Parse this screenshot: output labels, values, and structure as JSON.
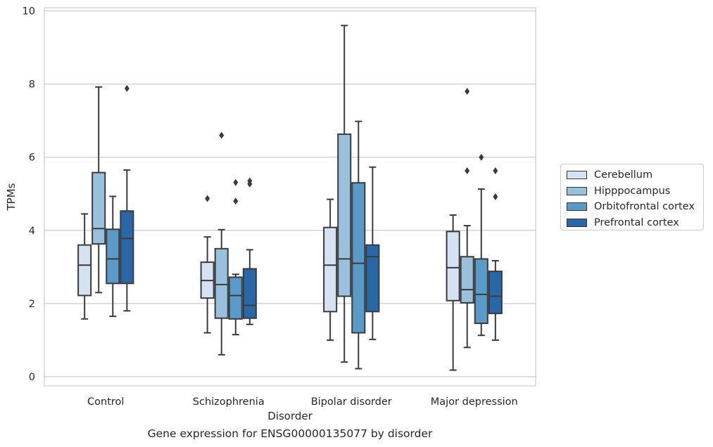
{
  "chart_data": {
    "type": "box",
    "title": "",
    "caption": "Gene expression for ENSG00000135077 by disorder",
    "xlabel": "Disorder",
    "ylabel": "TPMs",
    "ylim": [
      -0.25,
      10.1
    ],
    "yticks": [
      "0",
      "2",
      "4",
      "6",
      "8",
      "10"
    ],
    "grid": "horizontal",
    "legend_placement": "right",
    "categories": [
      "Control",
      "Schizophrenia",
      "Bipolar disorder",
      "Major depression"
    ],
    "series": [
      {
        "name": "Cerebellum",
        "color": "#d4e2f1",
        "boxes": [
          {
            "whisker_low": 1.58,
            "q1": 2.22,
            "median": 3.05,
            "q3": 3.6,
            "whisker_high": 4.45,
            "outliers": []
          },
          {
            "whisker_low": 1.2,
            "q1": 2.15,
            "median": 2.63,
            "q3": 3.13,
            "whisker_high": 3.82,
            "outliers": [
              4.87
            ]
          },
          {
            "whisker_low": 1.0,
            "q1": 1.78,
            "median": 3.05,
            "q3": 4.08,
            "whisker_high": 4.85,
            "outliers": []
          },
          {
            "whisker_low": 0.18,
            "q1": 2.08,
            "median": 2.98,
            "q3": 3.97,
            "whisker_high": 4.42,
            "outliers": []
          }
        ]
      },
      {
        "name": "Hipppocampus",
        "color": "#9ac1dc",
        "boxes": [
          {
            "whisker_low": 2.3,
            "q1": 3.63,
            "median": 4.05,
            "q3": 5.58,
            "whisker_high": 7.92,
            "outliers": []
          },
          {
            "whisker_low": 0.6,
            "q1": 1.6,
            "median": 2.52,
            "q3": 3.5,
            "whisker_high": 4.02,
            "outliers": [
              6.6
            ]
          },
          {
            "whisker_low": 0.4,
            "q1": 2.2,
            "median": 3.22,
            "q3": 6.63,
            "whisker_high": 9.6,
            "outliers": []
          },
          {
            "whisker_low": 0.8,
            "q1": 2.02,
            "median": 2.38,
            "q3": 3.28,
            "whisker_high": 4.13,
            "outliers": [
              5.63,
              7.8
            ]
          }
        ]
      },
      {
        "name": "Orbitofrontal cortex",
        "color": "#5a9ac9",
        "boxes": [
          {
            "whisker_low": 1.65,
            "q1": 2.55,
            "median": 3.22,
            "q3": 4.03,
            "whisker_high": 4.93,
            "outliers": []
          },
          {
            "whisker_low": 1.15,
            "q1": 1.58,
            "median": 2.22,
            "q3": 2.72,
            "whisker_high": 2.8,
            "outliers": [
              4.8,
              5.31
            ]
          },
          {
            "whisker_low": 0.22,
            "q1": 1.2,
            "median": 3.1,
            "q3": 5.3,
            "whisker_high": 6.98,
            "outliers": []
          },
          {
            "whisker_low": 1.13,
            "q1": 1.46,
            "median": 2.25,
            "q3": 3.22,
            "whisker_high": 5.13,
            "outliers": [
              6.0
            ]
          }
        ]
      },
      {
        "name": "Prefrontal cortex",
        "color": "#2868a8",
        "boxes": [
          {
            "whisker_low": 1.8,
            "q1": 2.55,
            "median": 3.78,
            "q3": 4.53,
            "whisker_high": 5.65,
            "outliers": [
              7.88
            ]
          },
          {
            "whisker_low": 1.43,
            "q1": 1.6,
            "median": 1.95,
            "q3": 2.95,
            "whisker_high": 3.47,
            "outliers": [
              5.27,
              5.35
            ]
          },
          {
            "whisker_low": 1.02,
            "q1": 1.78,
            "median": 3.28,
            "q3": 3.6,
            "whisker_high": 5.73,
            "outliers": []
          },
          {
            "whisker_low": 1.0,
            "q1": 1.73,
            "median": 2.2,
            "q3": 2.88,
            "whisker_high": 3.17,
            "outliers": [
              4.92,
              5.63
            ]
          }
        ]
      }
    ]
  }
}
